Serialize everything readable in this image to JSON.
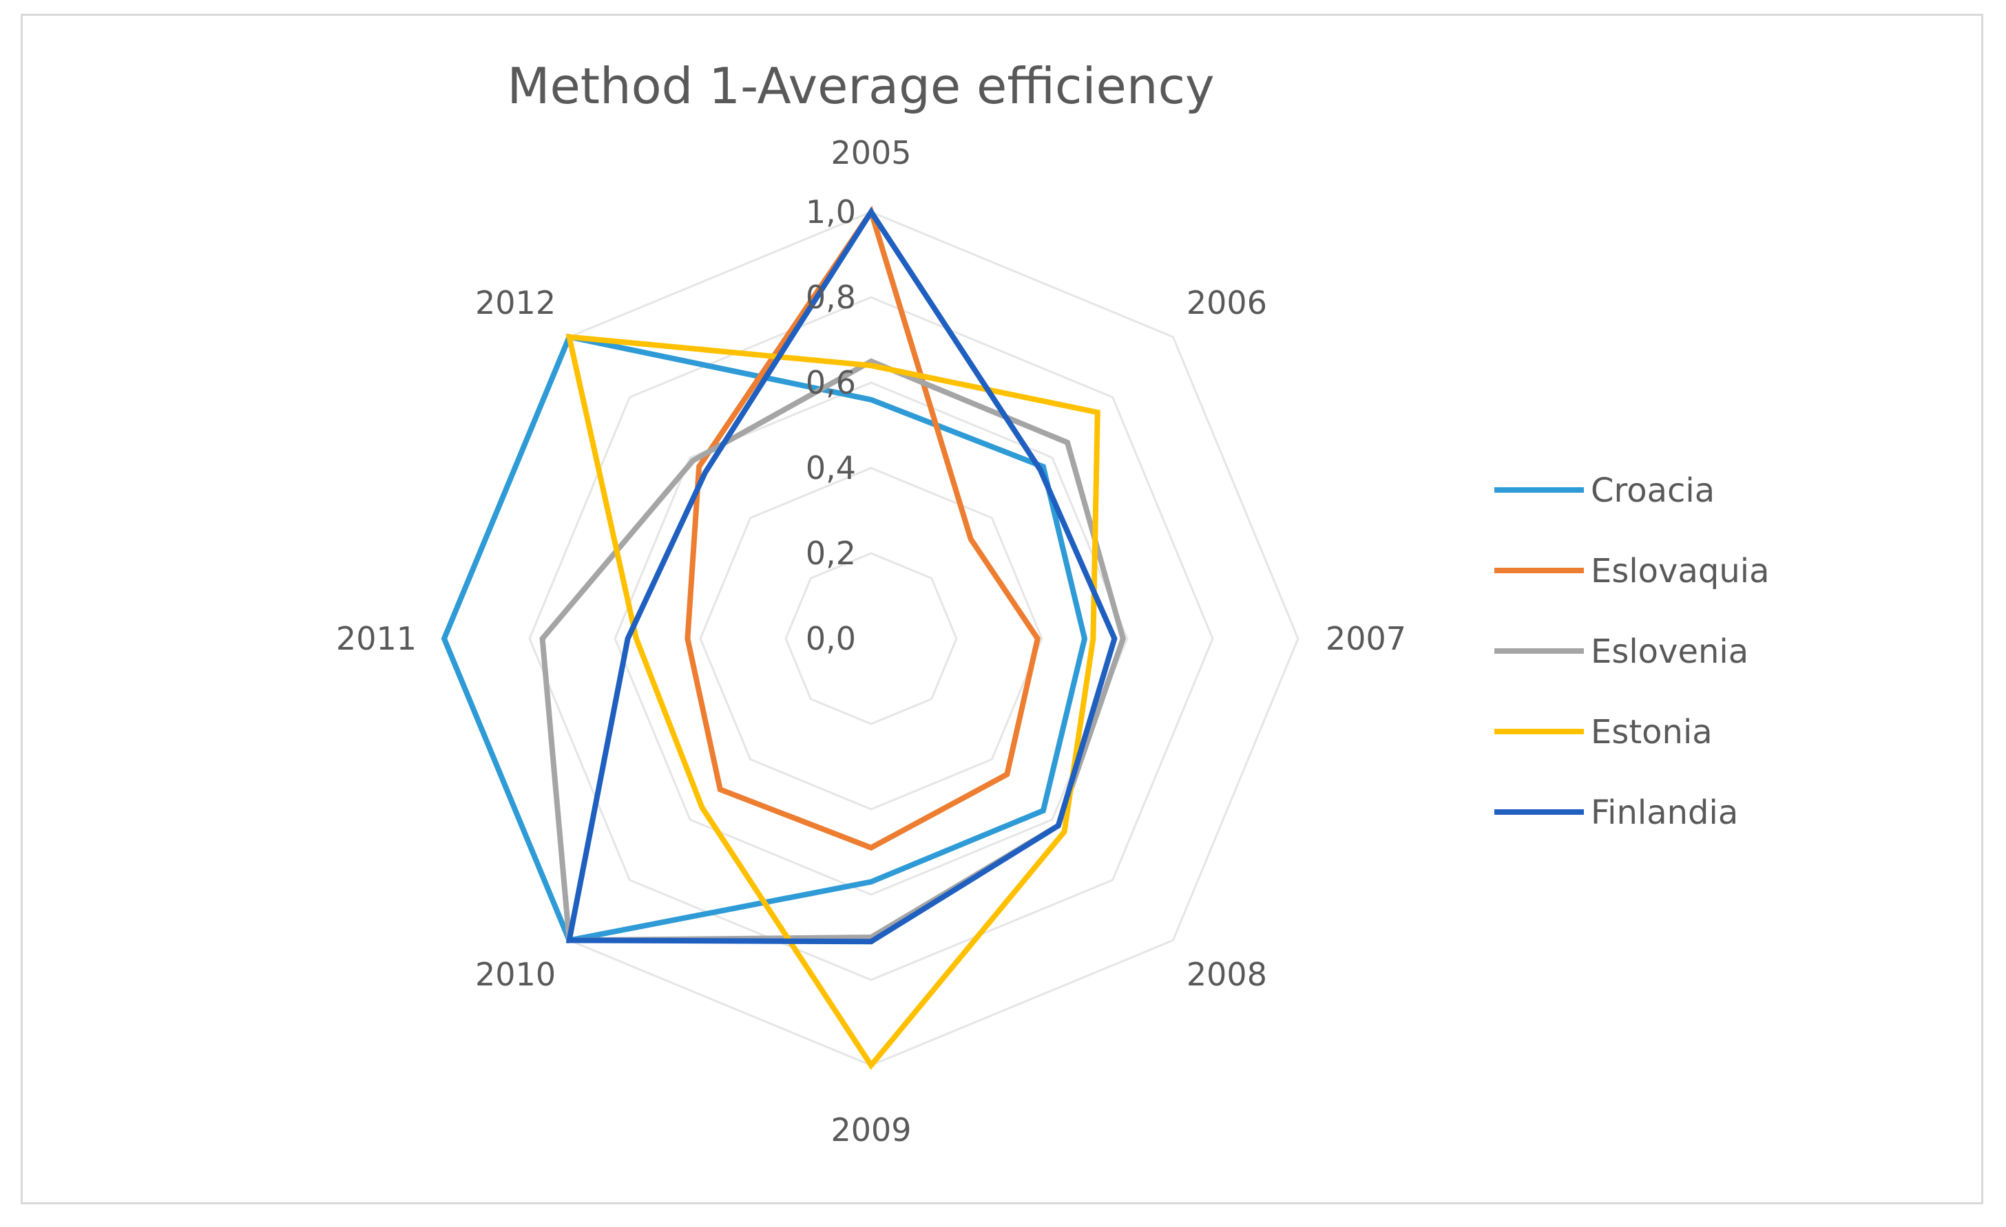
{
  "chart_data": {
    "type": "radar",
    "title": "Method 1-Average efficiency",
    "categories": [
      "2005",
      "2006",
      "2007",
      "2008",
      "2009",
      "2010",
      "2011",
      "2012"
    ],
    "rlim": [
      0,
      1
    ],
    "rticks": [
      "0,0",
      "0,2",
      "0,4",
      "0,6",
      "0,8",
      "1,0"
    ],
    "rtick_values": [
      0,
      0.2,
      0.4,
      0.6,
      0.8,
      1.0
    ],
    "legend_position": "right",
    "series": [
      {
        "name": "Croacia",
        "color": "#2e9bd6",
        "values": [
          0.56,
          0.57,
          0.5,
          0.57,
          0.57,
          1.0,
          1.0,
          1.0
        ]
      },
      {
        "name": "Eslovaquia",
        "color": "#ed7d31",
        "values": [
          1.0,
          0.33,
          0.39,
          0.45,
          0.49,
          0.5,
          0.43,
          0.57
        ]
      },
      {
        "name": "Eslovenia",
        "color": "#a5a5a5",
        "values": [
          0.65,
          0.65,
          0.59,
          0.62,
          0.7,
          1.0,
          0.77,
          0.59
        ]
      },
      {
        "name": "Estonia",
        "color": "#ffc000",
        "values": [
          0.64,
          0.75,
          0.52,
          0.64,
          1.0,
          0.56,
          0.55,
          1.0
        ]
      },
      {
        "name": "Finlandia",
        "color": "#1f5fbf",
        "values": [
          1.0,
          0.56,
          0.57,
          0.62,
          0.71,
          1.0,
          0.57,
          0.55
        ]
      }
    ]
  }
}
